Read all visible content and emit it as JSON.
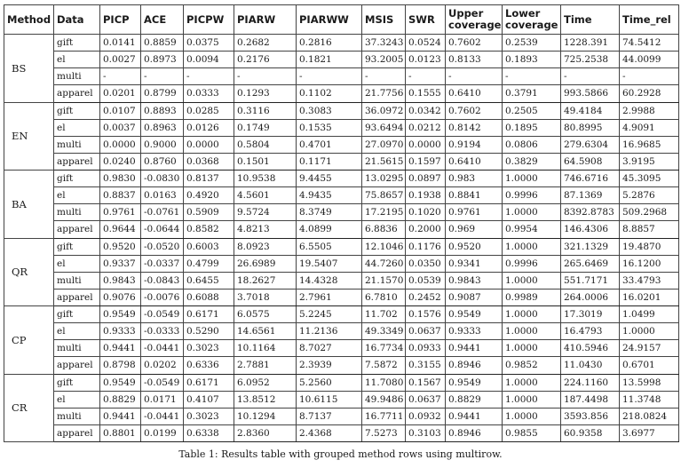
{
  "headers": [
    "Method",
    "Data",
    "PICP",
    "ACE",
    "PICPW",
    "PIARW",
    "PIARWW",
    "MSIS",
    "SWR",
    "Upper coverage",
    "Lower coverage",
    "Time",
    "Time_rel"
  ],
  "groups": [
    {
      "method": "BS",
      "rows": [
        [
          "gift",
          "0.0141",
          "0.8859",
          "0.0375",
          "0.2682",
          "0.2816",
          "37.3243",
          "0.0524",
          "0.7602",
          "0.2539",
          "1228.391",
          "74.5412"
        ],
        [
          "el",
          "0.0027",
          "0.8973",
          "0.0094",
          "0.2176",
          "0.1821",
          "93.2005",
          "0.0123",
          "0.8133",
          "0.1893",
          "725.2538",
          "44.0099"
        ],
        [
          "multi",
          "-",
          "-",
          "-",
          "-",
          "-",
          "-",
          "-",
          "-",
          "-",
          "-",
          "-"
        ],
        [
          "apparel",
          "0.0201",
          "0.8799",
          "0.0333",
          "0.1293",
          "0.1102",
          "21.7756",
          "0.1555",
          "0.6410",
          "0.3791",
          "993.5866",
          "60.2928"
        ]
      ]
    },
    {
      "method": "EN",
      "rows": [
        [
          "gift",
          "0.0107",
          "0.8893",
          "0.0285",
          "0.3116",
          "0.3083",
          "36.0972",
          "0.0342",
          "0.7602",
          "0.2505",
          "49.4184",
          "2.9988"
        ],
        [
          "el",
          "0.0037",
          "0.8963",
          "0.0126",
          "0.1749",
          "0.1535",
          "93.6494",
          "0.0212",
          "0.8142",
          "0.1895",
          "80.8995",
          "4.9091"
        ],
        [
          "multi",
          "0.0000",
          "0.9000",
          "0.0000",
          "0.5804",
          "0.4701",
          "27.0970",
          "0.0000",
          "0.9194",
          "0.0806",
          "279.6304",
          "16.9685"
        ],
        [
          "apparel",
          "0.0240",
          "0.8760",
          "0.0368",
          "0.1501",
          "0.1171",
          "21.5615",
          "0.1597",
          "0.6410",
          "0.3829",
          "64.5908",
          "3.9195"
        ]
      ]
    },
    {
      "method": "BA",
      "rows": [
        [
          "gift",
          "0.9830",
          "-0.0830",
          "0.8137",
          "10.9538",
          "9.4455",
          "13.0295",
          "0.0897",
          "0.983",
          "1.0000",
          "746.6716",
          "45.3095"
        ],
        [
          "el",
          "0.8837",
          "0.0163",
          "0.4920",
          "4.5601",
          "4.9435",
          "75.8657",
          "0.1938",
          "0.8841",
          "0.9996",
          "87.1369",
          "5.2876"
        ],
        [
          "multi",
          "0.9761",
          "-0.0761",
          "0.5909",
          "9.5724",
          "8.3749",
          "17.2195",
          "0.1020",
          "0.9761",
          "1.0000",
          "8392.8783",
          "509.2968"
        ],
        [
          "apparel",
          "0.9644",
          "-0.0644",
          "0.8582",
          "4.8213",
          "4.0899",
          "6.8836",
          "0.2000",
          "0.969",
          "0.9954",
          "146.4306",
          "8.8857"
        ]
      ]
    },
    {
      "method": "QR",
      "rows": [
        [
          "gift",
          "0.9520",
          "-0.0520",
          "0.6003",
          "8.0923",
          "6.5505",
          "12.1046",
          "0.1176",
          "0.9520",
          "1.0000",
          "321.1329",
          "19.4870"
        ],
        [
          "el",
          "0.9337",
          "-0.0337",
          "0.4799",
          "26.6989",
          "19.5407",
          "44.7260",
          "0.0350",
          "0.9341",
          "0.9996",
          "265.6469",
          "16.1200"
        ],
        [
          "multi",
          "0.9843",
          "-0.0843",
          "0.6455",
          "18.2627",
          "14.4328",
          "21.1570",
          "0.0539",
          "0.9843",
          "1.0000",
          "551.7171",
          "33.4793"
        ],
        [
          "apparel",
          "0.9076",
          "-0.0076",
          "0.6088",
          "3.7018",
          "2.7961",
          "6.7810",
          "0.2452",
          "0.9087",
          "0.9989",
          "264.0006",
          "16.0201"
        ]
      ]
    },
    {
      "method": "CP",
      "rows": [
        [
          "gift",
          "0.9549",
          "-0.0549",
          "0.6171",
          "6.0575",
          "5.2245",
          "11.702",
          "0.1576",
          "0.9549",
          "1.0000",
          "17.3019",
          "1.0499"
        ],
        [
          "el",
          "0.9333",
          "-0.0333",
          "0.5290",
          "14.6561",
          "11.2136",
          "49.3349",
          "0.0637",
          "0.9333",
          "1.0000",
          "16.4793",
          "1.0000"
        ],
        [
          "multi",
          "0.9441",
          "-0.0441",
          "0.3023",
          "10.1164",
          "8.7027",
          "16.7734",
          "0.0933",
          "0.9441",
          "1.0000",
          "410.5946",
          "24.9157"
        ],
        [
          "apparel",
          "0.8798",
          "0.0202",
          "0.6336",
          "2.7881",
          "2.3939",
          "7.5872",
          "0.3155",
          "0.8946",
          "0.9852",
          "11.0430",
          "0.6701"
        ]
      ]
    },
    {
      "method": "CR",
      "rows": [
        [
          "gift",
          "0.9549",
          "-0.0549",
          "0.6171",
          "6.0952",
          "5.2560",
          "11.7080",
          "0.1567",
          "0.9549",
          "1.0000",
          "224.1160",
          "13.5998"
        ],
        [
          "el",
          "0.8829",
          "0.0171",
          "0.4107",
          "13.8512",
          "10.6115",
          "49.9486",
          "0.0637",
          "0.8829",
          "1.0000",
          "187.4498",
          "11.3748"
        ],
        [
          "multi",
          "0.9441",
          "-0.0441",
          "0.3023",
          "10.1294",
          "8.7137",
          "16.7711",
          "0.0932",
          "0.9441",
          "1.0000",
          "3593.856",
          "218.0824"
        ],
        [
          "apparel",
          "0.8801",
          "0.0199",
          "0.6338",
          "2.8360",
          "2.4368",
          "7.5273",
          "0.3103",
          "0.8946",
          "0.9855",
          "60.9358",
          "3.6977"
        ]
      ]
    }
  ],
  "caption": "Table 1: Results table with grouped method rows using multirow."
}
